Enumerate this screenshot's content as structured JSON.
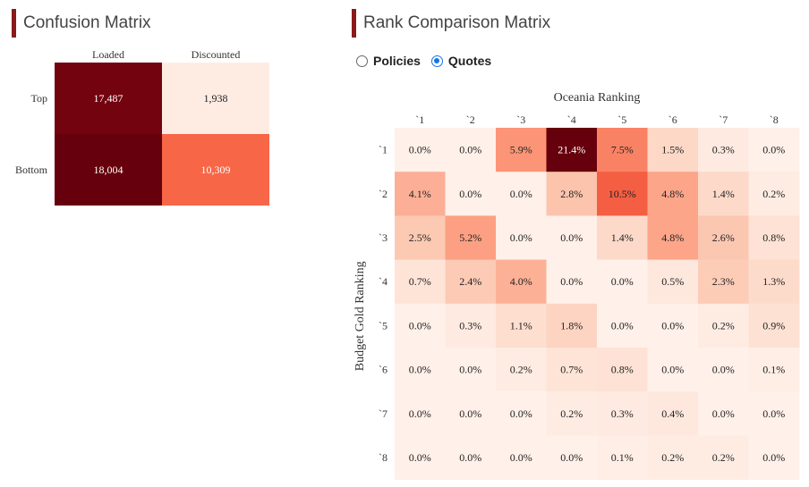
{
  "confusion_title": "Confusion Matrix",
  "rank_title": "Rank Comparison Matrix",
  "radio_options": [
    {
      "label": "Policies",
      "selected": false
    },
    {
      "label": "Quotes",
      "selected": true
    }
  ],
  "colors": {
    "accent": "#8b1a1a",
    "radio_selected": "#1a73e8"
  },
  "chart_data": [
    {
      "type": "heatmap",
      "title": "Confusion Matrix",
      "columns": [
        "Loaded",
        "Discounted"
      ],
      "rows": [
        "Top",
        "Bottom"
      ],
      "values": [
        [
          17487,
          1938
        ],
        [
          18004,
          10309
        ]
      ],
      "labels": [
        [
          "17,487",
          "1,938"
        ],
        [
          "18,004",
          "10,309"
        ]
      ]
    },
    {
      "type": "heatmap",
      "title": "Rank Comparison Matrix",
      "xlabel": "Oceania Ranking",
      "ylabel": "Budget Gold Ranking",
      "columns": [
        "`1",
        "`2",
        "`3",
        "`4",
        "`5",
        "`6",
        "`7",
        "`8"
      ],
      "rows": [
        "`1",
        "`2",
        "`3",
        "`4",
        "`5",
        "`6",
        "`7",
        "`8"
      ],
      "values": [
        [
          0.0,
          0.0,
          5.9,
          21.4,
          7.5,
          1.5,
          0.3,
          0.0
        ],
        [
          4.1,
          0.0,
          0.0,
          2.8,
          10.5,
          4.8,
          1.4,
          0.2
        ],
        [
          2.5,
          5.2,
          0.0,
          0.0,
          1.4,
          4.8,
          2.6,
          0.8
        ],
        [
          0.7,
          2.4,
          4.0,
          0.0,
          0.0,
          0.5,
          2.3,
          1.3
        ],
        [
          0.0,
          0.3,
          1.1,
          1.8,
          0.0,
          0.0,
          0.2,
          0.9
        ],
        [
          0.0,
          0.0,
          0.2,
          0.7,
          0.8,
          0.0,
          0.0,
          0.1
        ],
        [
          0.0,
          0.0,
          0.0,
          0.2,
          0.3,
          0.4,
          0.0,
          0.0
        ],
        [
          0.0,
          0.0,
          0.0,
          0.0,
          0.1,
          0.2,
          0.2,
          0.0
        ]
      ],
      "value_suffix": "%"
    }
  ]
}
